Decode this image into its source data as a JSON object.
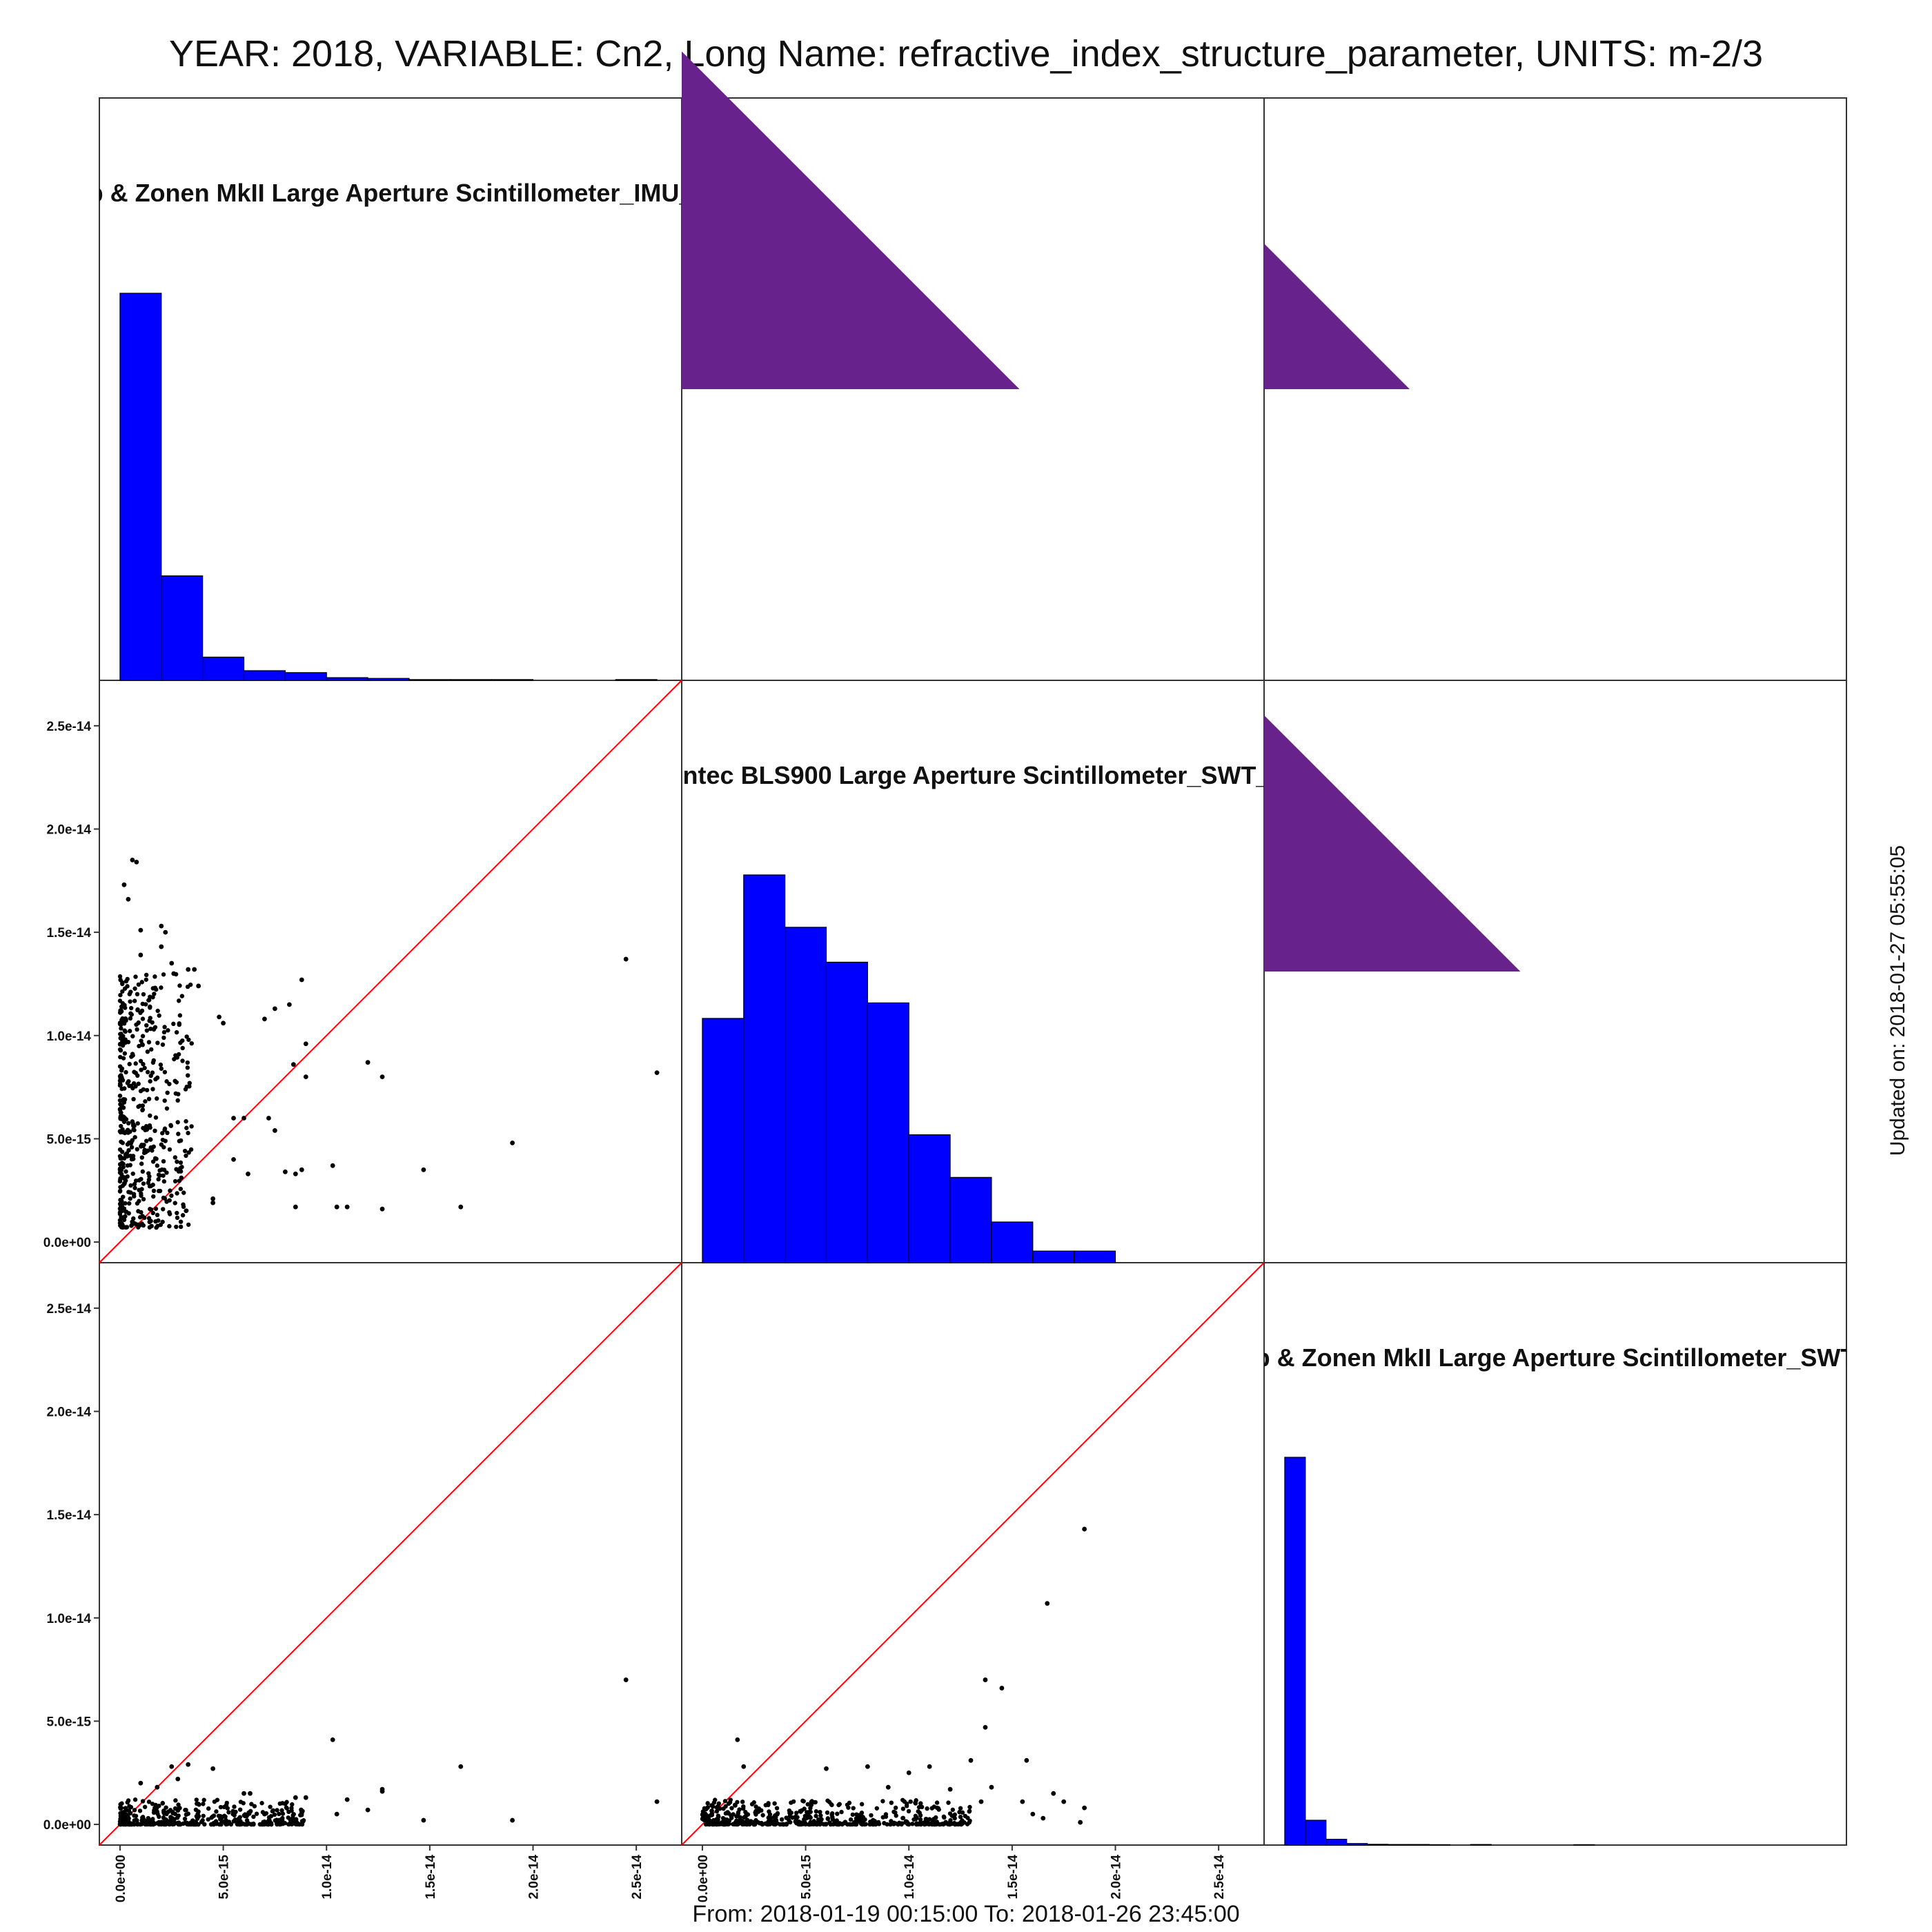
{
  "title": "YEAR: 2018, VARIABLE: Cn2, Long Name: refractive_index_structure_parameter, UNITS: m-2/3",
  "footer": "From: 2018-01-19 00:15:00 To: 2018-01-26 23:45:00",
  "updated": "Updated on: 2018-01-27 05:55:05",
  "colors": {
    "hist": "#0000ff",
    "corr": "#67228b",
    "ref_line": "#ff0000",
    "points": "#000000"
  },
  "chart_data": {
    "type": "scatter",
    "variables": [
      "p & Zonen MkII Large Aperture Scintillometer_IMU_",
      "intec BLS900 Large Aperture Scintillometer_SWT_",
      "p & Zonen MkII Large Aperture Scintillometer_SWT"
    ],
    "axis_ticks": [
      "0.0e+00",
      "5.0e-15",
      "1.0e-14",
      "1.5e-14",
      "2.0e-14",
      "2.5e-14"
    ],
    "axis_tick_values": [
      0,
      5e-15,
      1e-14,
      1.5e-14,
      2e-14,
      2.5e-14
    ],
    "axis_range": [
      -1e-15,
      2.72e-14
    ],
    "histograms": [
      {
        "variable": "p & Zonen MkII Large Aperture Scintillometer_IMU_",
        "bin_width": 2e-15,
        "bins": [
          0.0,
          2e-15,
          4e-15,
          6e-15,
          8e-15,
          1e-14,
          1.2e-14,
          1.4e-14,
          1.6e-14,
          1.8e-14,
          2e-14,
          2.2e-14,
          2.4e-14
        ],
        "relative_heights": [
          1.0,
          0.27,
          0.06,
          0.025,
          0.02,
          0.007,
          0.005,
          0.002,
          0.002,
          0.002,
          0.0,
          0.0,
          0.002
        ]
      },
      {
        "variable": "intec BLS900 Large Aperture Scintillometer_SWT_",
        "bin_width": 2e-15,
        "bins": [
          0.0,
          2e-15,
          4e-15,
          6e-15,
          8e-15,
          1e-14,
          1.2e-14,
          1.4e-14,
          1.6e-14,
          1.8e-14
        ],
        "relative_heights": [
          0.63,
          1.0,
          0.865,
          0.775,
          0.67,
          0.33,
          0.22,
          0.105,
          0.03,
          0.03
        ]
      },
      {
        "variable": "p & Zonen MkII Large Aperture Scintillometer_SWT",
        "bin_width": 1e-15,
        "bins": [
          0.0,
          1e-15,
          2e-15,
          3e-15,
          4e-15,
          5e-15,
          6e-15,
          7e-15,
          8e-15,
          9e-15,
          1e-14,
          1.1e-14,
          1.2e-14,
          1.3e-14,
          1.4e-14
        ],
        "relative_heights": [
          1.0,
          0.064,
          0.015,
          0.004,
          0.002,
          0.0015,
          0.0015,
          0.001,
          0.0,
          0.0015,
          0.0,
          0.0,
          0.0,
          0.0,
          0.001
        ]
      }
    ],
    "correlations": [
      {
        "row": 1,
        "col": 2,
        "relative_size": 0.58
      },
      {
        "row": 1,
        "col": 3,
        "relative_size": 0.25
      },
      {
        "row": 2,
        "col": 3,
        "relative_size": 0.44
      }
    ],
    "scatter_panels": [
      {
        "x_variable": "p & Zonen MkII Large Aperture Scintillometer_IMU_",
        "y_variable": "intec BLS900 Large Aperture Scintillometer_SWT_",
        "points": [
          [
            2.45e-14,
            1.37e-14
          ],
          [
            2.6e-14,
            8.2e-15
          ],
          [
            1.9e-14,
            4.8e-15
          ],
          [
            1.65e-14,
            1.7e-15
          ],
          [
            1.47e-14,
            3.5e-15
          ],
          [
            1.27e-14,
            8e-15
          ],
          [
            1.2e-14,
            8.7e-15
          ],
          [
            1.27e-14,
            1.6e-15
          ],
          [
            1.1e-14,
            1.7e-15
          ],
          [
            1.05e-14,
            1.7e-15
          ],
          [
            1.03e-14,
            3.7e-15
          ],
          [
            8.5e-15,
            1.7e-15
          ],
          [
            8.8e-15,
            3.5e-15
          ],
          [
            8.5e-15,
            3.3e-15
          ],
          [
            9e-15,
            9.6e-15
          ],
          [
            8.8e-15,
            1.27e-14
          ],
          [
            8.2e-15,
            1.15e-14
          ],
          [
            7.5e-15,
            1.13e-14
          ],
          [
            8.4e-15,
            8.6e-15
          ],
          [
            9e-15,
            8e-15
          ],
          [
            7e-15,
            1.08e-14
          ],
          [
            7.2e-15,
            6e-15
          ],
          [
            7.5e-15,
            5.4e-15
          ],
          [
            8e-15,
            3.4e-15
          ],
          [
            6.2e-15,
            3.3e-15
          ],
          [
            6e-15,
            6e-15
          ],
          [
            5.5e-15,
            6e-15
          ],
          [
            5.5e-15,
            4e-15
          ],
          [
            4.5e-15,
            2.1e-15
          ],
          [
            4.5e-15,
            1.9e-15
          ],
          [
            5e-15,
            1.06e-14
          ],
          [
            4.8e-15,
            1.09e-14
          ],
          [
            3.6e-15,
            1.32e-14
          ],
          [
            3.8e-15,
            1.24e-14
          ],
          [
            3.3e-15,
            1.32e-14
          ],
          [
            6e-16,
            1.85e-14
          ],
          [
            8e-16,
            1.84e-14
          ],
          [
            2e-16,
            1.73e-14
          ],
          [
            4e-16,
            1.66e-14
          ],
          [
            2e-15,
            1.53e-14
          ],
          [
            2.2e-15,
            1.5e-14
          ],
          [
            1e-15,
            1.51e-14
          ],
          [
            1e-15,
            1.39e-14
          ],
          [
            2e-15,
            1.43e-14
          ],
          [
            2.5e-15,
            1.35e-14
          ],
          [
            2.6e-15,
            1.3e-14
          ],
          [
            1.7e-15,
            1.23e-14
          ]
        ],
        "cluster_region": {
          "x": [
            0.0,
            3.5e-15
          ],
          "y": [
            7e-16,
            1.3e-14
          ],
          "approx_points": 520
        }
      },
      {
        "x_variable": "p & Zonen MkII Large Aperture Scintillometer_IMU_",
        "y_variable": "p & Zonen MkII Large Aperture Scintillometer_SWT",
        "points": [
          [
            2.45e-14,
            7e-15
          ],
          [
            2.6e-14,
            1.1e-15
          ],
          [
            1.9e-14,
            2e-16
          ],
          [
            1.65e-14,
            2.8e-15
          ],
          [
            1.47e-14,
            2e-16
          ],
          [
            1.27e-14,
            1.7e-15
          ],
          [
            1.2e-14,
            7e-16
          ],
          [
            1.27e-14,
            1.6e-15
          ],
          [
            1.03e-14,
            4.1e-15
          ],
          [
            1.05e-14,
            5e-16
          ],
          [
            1.1e-14,
            1.2e-15
          ],
          [
            9e-15,
            1.3e-15
          ],
          [
            8.5e-15,
            1.3e-15
          ],
          [
            8.8e-15,
            6e-16
          ],
          [
            8e-15,
            1e-15
          ],
          [
            7e-15,
            5e-16
          ],
          [
            6.3e-15,
            1.5e-15
          ],
          [
            6e-15,
            1.5e-15
          ],
          [
            4.5e-15,
            2.7e-15
          ],
          [
            3.3e-15,
            2.9e-15
          ],
          [
            2.8e-15,
            2.2e-15
          ],
          [
            2.5e-15,
            2.8e-15
          ],
          [
            1e-15,
            2e-15
          ],
          [
            1.8e-15,
            1.8e-15
          ]
        ],
        "cluster_region": {
          "x": [
            0.0,
            9e-15
          ],
          "y": [
            0.0,
            1.2e-15
          ],
          "approx_points": 420
        }
      },
      {
        "x_variable": "intec BLS900 Large Aperture Scintillometer_SWT_",
        "y_variable": "p & Zonen MkII Large Aperture Scintillometer_SWT",
        "points": [
          [
            1.85e-14,
            1.43e-14
          ],
          [
            1.67e-14,
            1.07e-14
          ],
          [
            1.37e-14,
            7e-15
          ],
          [
            1.45e-14,
            6.6e-15
          ],
          [
            1.57e-14,
            3.1e-15
          ],
          [
            1.37e-14,
            4.7e-15
          ],
          [
            1.3e-14,
            3.1e-15
          ],
          [
            1.1e-14,
            2.8e-15
          ],
          [
            1e-14,
            2.5e-15
          ],
          [
            8e-15,
            2.8e-15
          ],
          [
            6e-15,
            2.7e-15
          ],
          [
            1.7e-15,
            4.1e-15
          ],
          [
            2e-15,
            2.8e-15
          ],
          [
            1.7e-14,
            1.5e-15
          ],
          [
            1.75e-14,
            1.1e-15
          ],
          [
            1.85e-14,
            8e-16
          ],
          [
            1.6e-14,
            5e-16
          ],
          [
            1.55e-14,
            1.1e-15
          ],
          [
            1.4e-14,
            1.8e-15
          ],
          [
            1.2e-14,
            1.7e-15
          ],
          [
            1.35e-14,
            1.1e-15
          ],
          [
            1.65e-14,
            3e-16
          ],
          [
            1.83e-14,
            1e-16
          ],
          [
            9e-15,
            1.8e-15
          ]
        ],
        "cluster_region": {
          "x": [
            0.0,
            1.3e-14
          ],
          "y": [
            0.0,
            1.2e-15
          ],
          "approx_points": 520
        }
      }
    ],
    "reference_line": "y = x"
  }
}
